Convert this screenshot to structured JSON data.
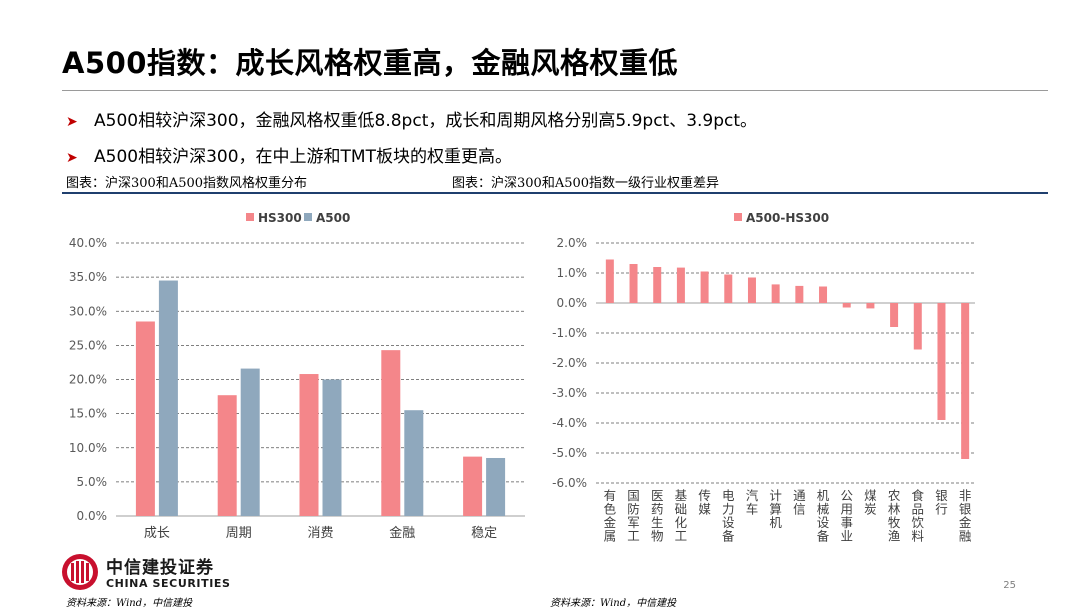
{
  "title": "A500指数：成长风格权重高，金融风格权重低",
  "bullets": [
    "A500相较沪深300，金融风格权重低8.8pct，成长和周期风格分别高5.9pct、3.9pct。",
    "A500相较沪深300，在中上游和TMT板块的权重更高。"
  ],
  "bullet_icon": "triangle-right-icon",
  "colors": {
    "hs300": "#f4868a",
    "a500": "#8fa8bd",
    "diff": "#f4868a",
    "accent": "#c00000",
    "rule": "#1f3f6e"
  },
  "captions": {
    "left": "图表：沪深300和A500指数风格权重分布",
    "right": "图表：沪深300和A500指数一级行业权重差异"
  },
  "sources": {
    "left": "资料来源：Wind，中信建投",
    "right": "资料来源：Wind，中信建投"
  },
  "logo": {
    "cn": "中信建投证券",
    "en": "CHINA SECURITIES",
    "icon": "citic-logo-icon"
  },
  "page_number": "25",
  "chart_data": [
    {
      "type": "bar",
      "categories": [
        "成长",
        "周期",
        "消费",
        "金融",
        "稳定"
      ],
      "series": [
        {
          "name": "HS300",
          "values": [
            28.5,
            17.7,
            20.8,
            24.3,
            8.7
          ]
        },
        {
          "name": "A500",
          "values": [
            34.5,
            21.6,
            20.0,
            15.5,
            8.5
          ]
        }
      ],
      "ylim": [
        0,
        40
      ],
      "yticks": [
        "0.0%",
        "5.0%",
        "10.0%",
        "15.0%",
        "20.0%",
        "25.0%",
        "30.0%",
        "35.0%",
        "40.0%"
      ],
      "legend": "top-center",
      "grid": "horizontal-dashed"
    },
    {
      "type": "bar",
      "categories": [
        "有色金属",
        "国防军工",
        "医药生物",
        "基础化工",
        "传媒",
        "电力设备",
        "汽车",
        "计算机",
        "通信",
        "机械设备",
        "公用事业",
        "煤炭",
        "农林牧渔",
        "食品饮料",
        "银行",
        "非银金融"
      ],
      "series": [
        {
          "name": "A500-HS300",
          "values": [
            1.45,
            1.3,
            1.2,
            1.18,
            1.05,
            0.95,
            0.85,
            0.62,
            0.57,
            0.55,
            -0.15,
            -0.18,
            -0.8,
            -1.55,
            -3.9,
            -5.2
          ]
        }
      ],
      "ylim": [
        -6,
        2
      ],
      "yticks": [
        "-6.0%",
        "-5.0%",
        "-4.0%",
        "-3.0%",
        "-2.0%",
        "-1.0%",
        "0.0%",
        "1.0%",
        "2.0%"
      ],
      "legend": "top-center",
      "grid": "horizontal-dashed"
    }
  ]
}
